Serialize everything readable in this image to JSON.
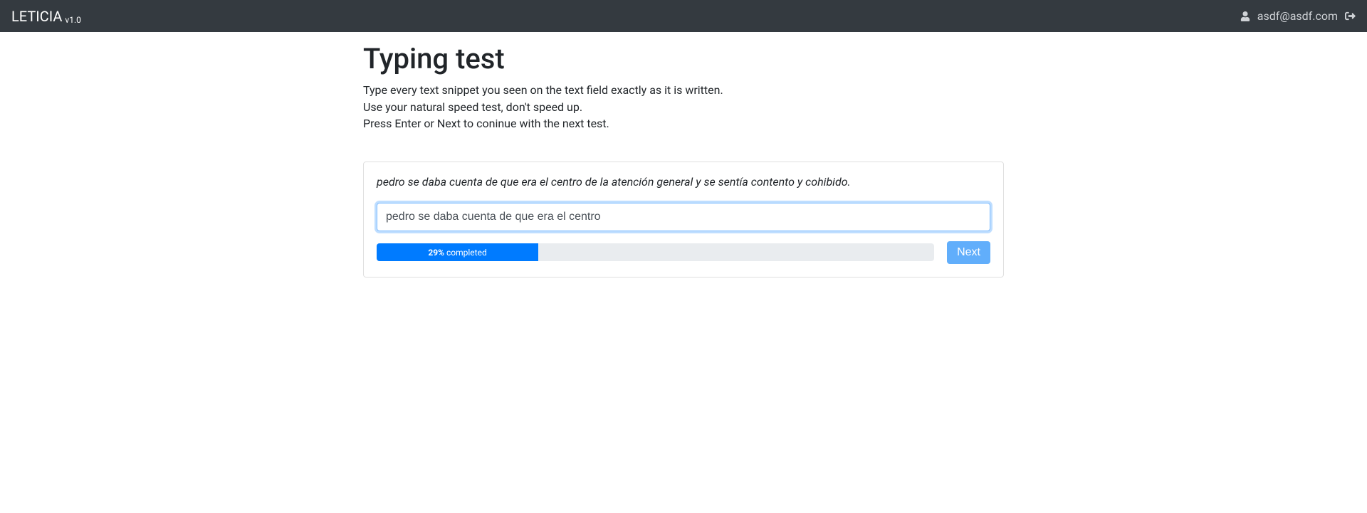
{
  "nav": {
    "brand_name": "LETICIA",
    "brand_version": "v1.0",
    "user_email": "asdf@asdf.com"
  },
  "page": {
    "title": "Typing test",
    "instructions": [
      "Type every text snippet you seen on the text field exactly as it is written.",
      "Use your natural speed test, don't speed up.",
      "Press Enter or Next to coninue with the next test."
    ]
  },
  "test": {
    "snippet": "pedro se daba cuenta de que era el centro de la atención general y se sentía contento y cohibido.",
    "input_value": "pedro se daba cuenta de que era el centro",
    "progress_percent": 29,
    "progress_label_percent": "29%",
    "progress_label_suffix": "completed",
    "next_label": "Next"
  },
  "style": {
    "navbar_bg": "#343a40",
    "accent": "#007bff",
    "next_btn_bg": "#61aefb",
    "progress_track": "#e9ecef",
    "input_focus_border": "#80bdff",
    "input_focus_shadow": "rgba(0,123,255,0.25)"
  }
}
